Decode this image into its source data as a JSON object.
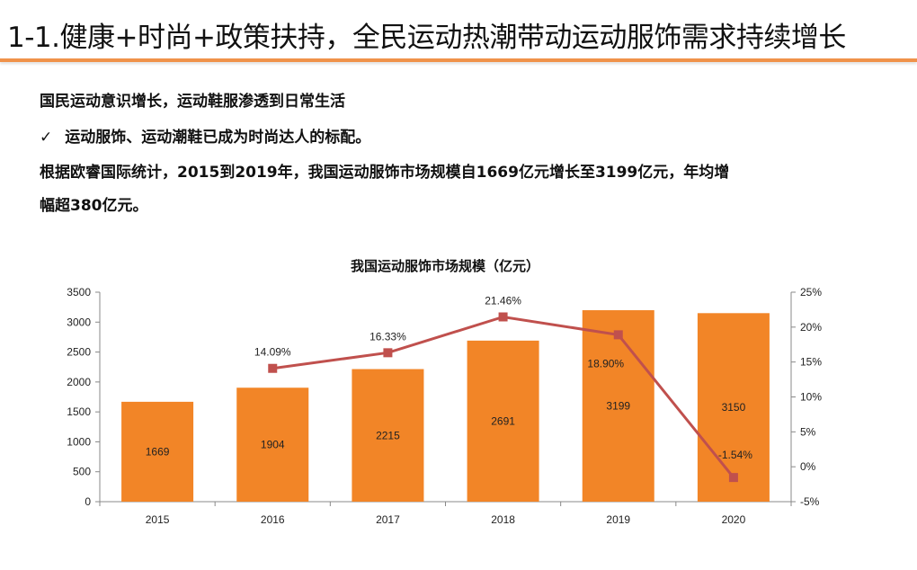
{
  "header": {
    "title": "1-1.健康+时尚+政策扶持，全民运动热潮带动运动服饰需求持续增长"
  },
  "body": {
    "line1": "国民运动意识增长，运动鞋服渗透到日常生活",
    "check_icon": "checkmark-icon",
    "line2": "运动服饰、运动潮鞋已成为时尚达人的标配。",
    "line3": "根据欧睿国际统计，2015到2019年，我国运动服饰市场规模自1669亿元增长至3199亿元，年均增",
    "line4": "幅超380亿元。"
  },
  "chart_data": {
    "type": "bar+line",
    "title": "我国运动服饰市场规模（亿元）",
    "categories": [
      "2015",
      "2016",
      "2017",
      "2018",
      "2019",
      "2020"
    ],
    "bar_series": {
      "values": [
        1669,
        1904,
        2215,
        2691,
        3199,
        3150
      ],
      "labels": [
        "1669",
        "1904",
        "2215",
        "2691",
        "3199",
        "3150"
      ],
      "color": "#F28527"
    },
    "line_series": {
      "values": [
        null,
        14.09,
        16.33,
        21.46,
        18.9,
        -1.54
      ],
      "labels": [
        "",
        "14.09%",
        "16.33%",
        "21.46%",
        "18.90%",
        "-1.54%"
      ],
      "color": "#C0504D"
    },
    "y_left": {
      "range": [
        0,
        3500
      ],
      "ticks": [
        "0",
        "500",
        "1000",
        "1500",
        "2000",
        "2500",
        "3000",
        "3500"
      ]
    },
    "y_right": {
      "range": [
        -5,
        25
      ],
      "ticks": [
        "-5%",
        "0%",
        "5%",
        "10%",
        "15%",
        "20%",
        "25%"
      ]
    },
    "grid": false,
    "legend": "none"
  }
}
